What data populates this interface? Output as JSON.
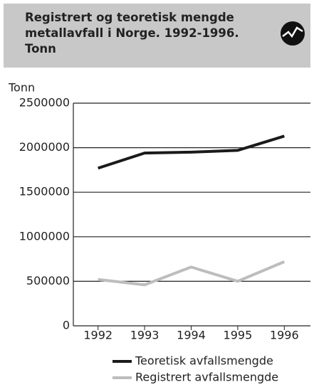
{
  "chart_data": {
    "type": "line",
    "title": "Registrert og teoretisk mengde metallavfall i Norge. 1992-1996. Tonn",
    "y_label": "Tonn",
    "categories": [
      "1992",
      "1993",
      "1994",
      "1995",
      "1996"
    ],
    "series": [
      {
        "name": "Teoretisk avfallsmengde",
        "color": "#1a1a1a",
        "values": [
          1770000,
          1940000,
          1950000,
          1970000,
          2130000
        ]
      },
      {
        "name": "Registrert avfallsmengde",
        "color": "#bdbdbd",
        "values": [
          520000,
          460000,
          660000,
          500000,
          720000
        ]
      }
    ],
    "ylim": [
      0,
      2500000
    ],
    "yticks": [
      0,
      500000,
      1000000,
      1500000,
      2000000,
      2500000
    ],
    "grid": true
  }
}
